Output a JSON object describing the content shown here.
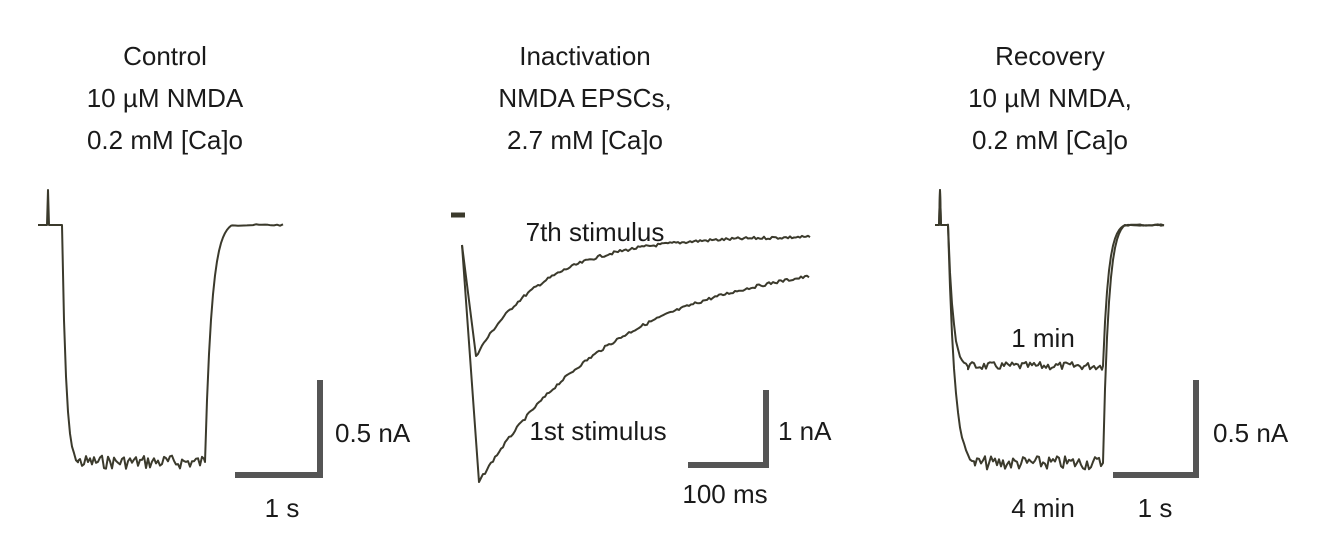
{
  "panels": [
    {
      "title": [
        "Control",
        "10 µM  NMDA",
        "0.2 mM [Ca]o"
      ],
      "scale_bar": {
        "y": "0.5 nA",
        "x": "1 s"
      }
    },
    {
      "title": [
        "Inactivation",
        "NMDA EPSCs,",
        "2.7 mM [Ca]o"
      ],
      "trace_labels": [
        "7th stimulus",
        "1st stimulus"
      ],
      "scale_bar": {
        "y": "1 nA",
        "x": "100 ms"
      }
    },
    {
      "title": [
        "Recovery",
        "10 µM NMDA,",
        "0.2 mM [Ca]o"
      ],
      "trace_labels": [
        "1 min",
        "4 min"
      ],
      "scale_bar": {
        "y": "0.5 nA",
        "x": "1 s"
      }
    }
  ]
}
